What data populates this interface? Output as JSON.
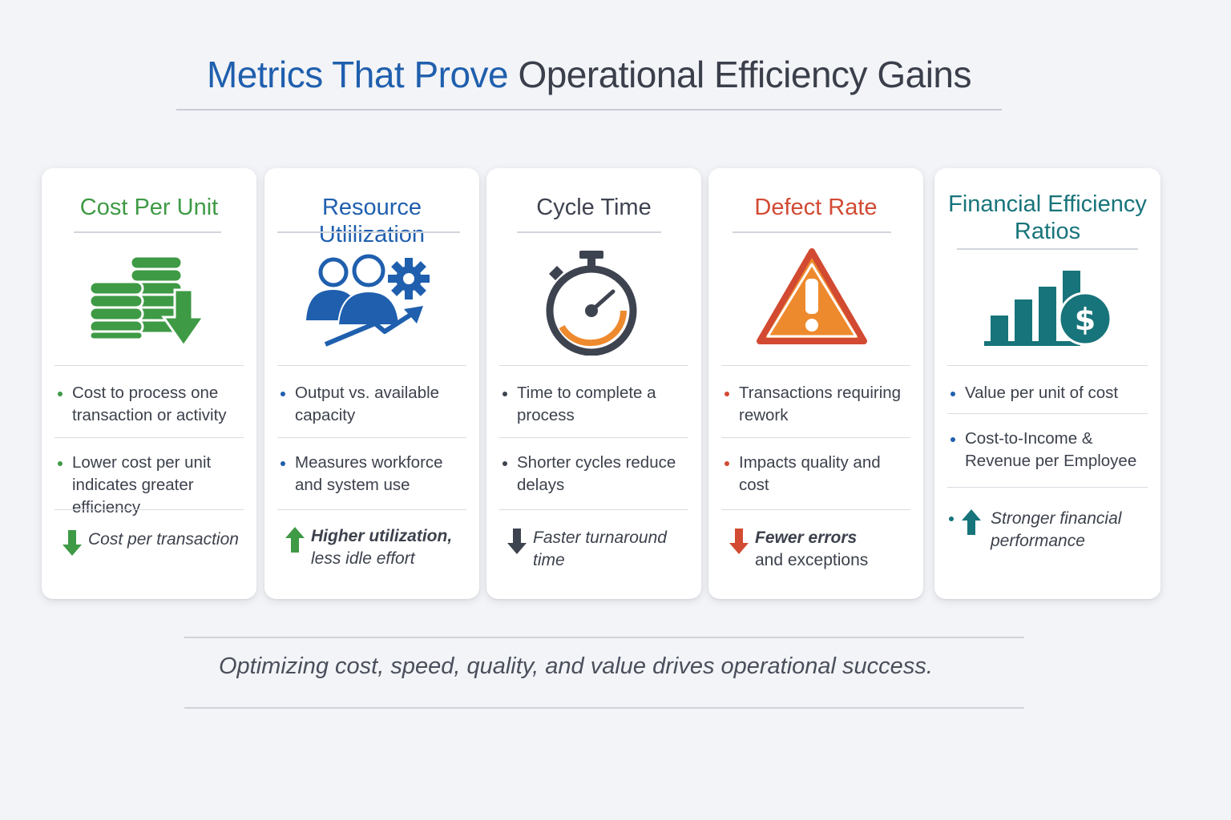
{
  "header": {
    "title_part1": "Metrics That Prove",
    "title_part2": "Operational Efficiency Gains"
  },
  "colors": {
    "title_blue": "#1f5fae",
    "green": "#3e9a45",
    "blue": "#1f5fae",
    "dark": "#3e4350",
    "red": "#d24a32",
    "orange": "#ee8a2e",
    "teal": "#17747a"
  },
  "cards": [
    {
      "title": "Cost Per Unit",
      "accent": "#3e9a45",
      "icon": "coins-down-icon",
      "bullets": [
        "Cost to process one transaction or activity",
        "Lower cost per unit indicates greater efficiency"
      ],
      "highlight": "Cost per transaction",
      "highlight_icon": "arrow-down-icon"
    },
    {
      "title": "Resource Utlilization",
      "accent": "#1f5fae",
      "icon": "people-gear-icon",
      "bullets": [
        "Output vs. available capacity",
        "Measures workforce and system use"
      ],
      "highlight_bold": "Higher utilization,",
      "highlight_rest": "less idle effort",
      "highlight_icon": "arrow-up-icon"
    },
    {
      "title": "Cycle Time",
      "accent": "#3e4350",
      "icon": "stopwatch-icon",
      "bullets": [
        "Time to complete a process",
        "Shorter cycles reduce delays"
      ],
      "highlight": "Faster turnaround time",
      "highlight_icon": "arrow-down-icon"
    },
    {
      "title": "Defect Rate",
      "accent": "#d24a32",
      "icon": "warning-icon",
      "bullets": [
        "Transactions requiring rework",
        "Impacts quality and cost"
      ],
      "highlight_bold": "Fewer errors",
      "highlight_rest": "and exceptions",
      "highlight_icon": "arrow-down-icon"
    },
    {
      "title": "Financial Efficiency Ratios",
      "accent": "#17747a",
      "icon": "chart-dollar-icon",
      "bullets": [
        "Value per unit of cost",
        "Cost-to-Income & Revenue per Employee"
      ],
      "highlight": "Stronger financial performance",
      "highlight_icon": "arrow-up-icon"
    }
  ],
  "footer": {
    "tagline": "Optimizing cost, speed, quality, and value drives operational success."
  }
}
